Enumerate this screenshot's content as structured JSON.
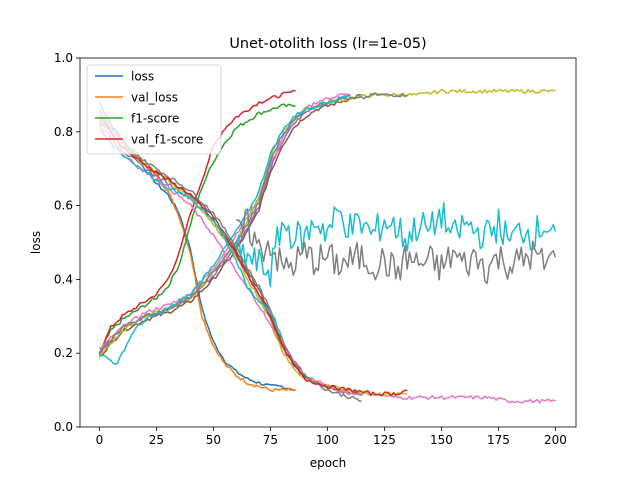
{
  "chart_data": {
    "type": "line",
    "title": "Unet-otolith loss (lr=1e-05)",
    "xlabel": "epoch",
    "ylabel": "loss",
    "xlim": [
      -8.5,
      209
    ],
    "ylim": [
      0.0,
      1.0
    ],
    "xticks": [
      0,
      25,
      50,
      75,
      100,
      125,
      150,
      175,
      200
    ],
    "yticks": [
      0.0,
      0.2,
      0.4,
      0.6,
      0.8,
      1.0
    ],
    "xtick_labels": [
      "0",
      "25",
      "50",
      "75",
      "100",
      "125",
      "150",
      "175",
      "200"
    ],
    "ytick_labels": [
      "0.0",
      "0.2",
      "0.4",
      "0.6",
      "0.8",
      "1.0"
    ],
    "grid": false,
    "legend_position": "top-left",
    "legend": [
      "loss",
      "val_loss",
      "f1-score",
      "val_f1-score"
    ],
    "series": [
      {
        "name": "loss",
        "color": "#1f77b4",
        "kind": "decreasing",
        "x": [
          0,
          5,
          10,
          15,
          20,
          25,
          30,
          35,
          40,
          45,
          50,
          55,
          60,
          65,
          70,
          75,
          80,
          86
        ],
        "y": [
          0.88,
          0.82,
          0.78,
          0.74,
          0.7,
          0.66,
          0.63,
          0.58,
          0.48,
          0.32,
          0.23,
          0.18,
          0.15,
          0.13,
          0.12,
          0.11,
          0.11,
          0.1
        ]
      },
      {
        "name": "val_loss",
        "color": "#ff7f0e",
        "kind": "decreasing",
        "x": [
          0,
          5,
          10,
          15,
          20,
          25,
          30,
          35,
          40,
          45,
          50,
          55,
          60,
          65,
          70,
          75,
          80,
          86
        ],
        "y": [
          0.86,
          0.8,
          0.77,
          0.75,
          0.72,
          0.68,
          0.64,
          0.57,
          0.47,
          0.3,
          0.22,
          0.17,
          0.14,
          0.12,
          0.11,
          0.1,
          0.1,
          0.1
        ]
      },
      {
        "name": "f1-score",
        "color": "#2ca02c",
        "kind": "increasing",
        "x": [
          0,
          5,
          10,
          15,
          20,
          25,
          30,
          35,
          40,
          45,
          50,
          55,
          60,
          65,
          70,
          75,
          80,
          86
        ],
        "y": [
          0.2,
          0.26,
          0.29,
          0.31,
          0.33,
          0.35,
          0.38,
          0.44,
          0.55,
          0.65,
          0.72,
          0.77,
          0.81,
          0.83,
          0.85,
          0.86,
          0.87,
          0.87
        ]
      },
      {
        "name": "val_f1-score",
        "color": "#d62728",
        "kind": "increasing",
        "x": [
          0,
          5,
          10,
          15,
          20,
          25,
          30,
          35,
          40,
          45,
          50,
          55,
          60,
          65,
          70,
          75,
          80,
          86
        ],
        "y": [
          0.2,
          0.27,
          0.3,
          0.32,
          0.34,
          0.36,
          0.4,
          0.47,
          0.58,
          0.67,
          0.76,
          0.81,
          0.84,
          0.86,
          0.88,
          0.89,
          0.9,
          0.91
        ]
      },
      {
        "name": "",
        "color": "#9467bd",
        "kind": "increasing",
        "x": [
          0,
          10,
          20,
          30,
          40,
          50,
          60,
          65,
          70,
          75,
          80,
          85,
          90,
          95,
          100,
          105,
          110
        ],
        "y": [
          0.2,
          0.27,
          0.3,
          0.32,
          0.35,
          0.41,
          0.49,
          0.54,
          0.6,
          0.7,
          0.77,
          0.82,
          0.85,
          0.87,
          0.88,
          0.89,
          0.9
        ]
      },
      {
        "name": "",
        "color": "#8c564b",
        "kind": "increasing",
        "x": [
          0,
          10,
          20,
          30,
          40,
          50,
          60,
          65,
          70,
          75,
          80,
          85,
          90,
          95,
          100,
          105,
          110,
          115
        ],
        "y": [
          0.19,
          0.26,
          0.29,
          0.31,
          0.34,
          0.4,
          0.48,
          0.53,
          0.59,
          0.69,
          0.76,
          0.81,
          0.84,
          0.86,
          0.87,
          0.88,
          0.89,
          0.9
        ]
      },
      {
        "name": "",
        "color": "#e377c2",
        "kind": "increasing",
        "x": [
          0,
          10,
          20,
          30,
          40,
          50,
          60,
          65,
          70,
          75,
          80,
          85,
          90,
          95,
          100,
          105,
          110
        ],
        "y": [
          0.21,
          0.27,
          0.31,
          0.33,
          0.36,
          0.43,
          0.52,
          0.57,
          0.62,
          0.71,
          0.78,
          0.83,
          0.86,
          0.88,
          0.89,
          0.9,
          0.9
        ]
      },
      {
        "name": "",
        "color": "#bcbd22",
        "kind": "increasing",
        "x": [
          0,
          10,
          20,
          30,
          40,
          50,
          60,
          65,
          70,
          75,
          80,
          90,
          100,
          110,
          120,
          130,
          140,
          150,
          160,
          170,
          180,
          190,
          200
        ],
        "y": [
          0.19,
          0.26,
          0.3,
          0.32,
          0.35,
          0.42,
          0.5,
          0.56,
          0.62,
          0.73,
          0.8,
          0.86,
          0.88,
          0.89,
          0.9,
          0.9,
          0.9,
          0.91,
          0.91,
          0.91,
          0.91,
          0.91,
          0.91
        ]
      },
      {
        "name": "",
        "color": "#7f7f7f",
        "kind": "increasing",
        "x": [
          0,
          10,
          20,
          30,
          40,
          50,
          60,
          65,
          70,
          75,
          80,
          85,
          90,
          95,
          100,
          105,
          110,
          115,
          120,
          125,
          130,
          135
        ],
        "y": [
          0.2,
          0.27,
          0.3,
          0.32,
          0.35,
          0.42,
          0.5,
          0.55,
          0.61,
          0.72,
          0.79,
          0.83,
          0.86,
          0.87,
          0.88,
          0.89,
          0.89,
          0.89,
          0.9,
          0.9,
          0.9,
          0.9
        ]
      },
      {
        "name": "",
        "color": "#17becf",
        "kind": "increasing",
        "x": [
          0,
          5,
          8,
          10,
          15,
          20,
          30,
          40,
          50,
          60,
          65,
          70,
          75,
          80,
          85,
          90,
          95,
          100,
          105,
          110
        ],
        "y": [
          0.2,
          0.18,
          0.17,
          0.2,
          0.26,
          0.29,
          0.32,
          0.36,
          0.44,
          0.53,
          0.58,
          0.64,
          0.74,
          0.8,
          0.84,
          0.86,
          0.87,
          0.88,
          0.89,
          0.9
        ]
      },
      {
        "name": "",
        "color": "#9467bd",
        "kind": "decreasing",
        "x": [
          0,
          10,
          20,
          30,
          40,
          50,
          60,
          65,
          70,
          75,
          80,
          85,
          90,
          95,
          100,
          105,
          110,
          115
        ],
        "y": [
          0.82,
          0.75,
          0.7,
          0.66,
          0.62,
          0.56,
          0.47,
          0.41,
          0.36,
          0.3,
          0.22,
          0.17,
          0.14,
          0.12,
          0.11,
          0.1,
          0.1,
          0.09
        ]
      },
      {
        "name": "",
        "color": "#8c564b",
        "kind": "decreasing",
        "x": [
          0,
          10,
          20,
          30,
          40,
          50,
          60,
          65,
          70,
          75,
          80,
          85,
          90,
          95,
          100,
          105,
          110,
          115
        ],
        "y": [
          0.83,
          0.76,
          0.71,
          0.67,
          0.63,
          0.57,
          0.48,
          0.42,
          0.37,
          0.31,
          0.23,
          0.18,
          0.14,
          0.12,
          0.11,
          0.1,
          0.09,
          0.09
        ]
      },
      {
        "name": "",
        "color": "#e377c2",
        "kind": "decreasing",
        "x": [
          0,
          10,
          20,
          30,
          40,
          50,
          60,
          70,
          80,
          90,
          100,
          110,
          120,
          130,
          140,
          150,
          160,
          170,
          180,
          190,
          200
        ],
        "y": [
          0.81,
          0.74,
          0.69,
          0.65,
          0.6,
          0.52,
          0.42,
          0.33,
          0.22,
          0.14,
          0.11,
          0.09,
          0.09,
          0.08,
          0.08,
          0.08,
          0.08,
          0.08,
          0.07,
          0.07,
          0.07
        ]
      },
      {
        "name": "",
        "color": "#bcbd22",
        "kind": "decreasing",
        "x": [
          0,
          10,
          20,
          30,
          40,
          50,
          60,
          65,
          70,
          75,
          80,
          85,
          90,
          95,
          100,
          110,
          120,
          130,
          135
        ],
        "y": [
          0.84,
          0.76,
          0.71,
          0.67,
          0.62,
          0.55,
          0.46,
          0.4,
          0.35,
          0.29,
          0.21,
          0.16,
          0.13,
          0.12,
          0.11,
          0.1,
          0.09,
          0.09,
          0.09
        ]
      },
      {
        "name": "",
        "color": "#7f7f7f",
        "kind": "decreasing",
        "x": [
          0,
          10,
          20,
          30,
          40,
          50,
          60,
          65,
          70,
          75,
          80,
          85,
          90,
          95,
          100,
          105,
          110,
          115
        ],
        "y": [
          0.85,
          0.77,
          0.72,
          0.68,
          0.64,
          0.58,
          0.49,
          0.43,
          0.38,
          0.32,
          0.24,
          0.18,
          0.14,
          0.12,
          0.1,
          0.09,
          0.08,
          0.07
        ]
      },
      {
        "name": "",
        "color": "#d62728",
        "kind": "decreasing",
        "x": [
          0,
          10,
          20,
          30,
          40,
          50,
          60,
          65,
          70,
          75,
          80,
          85,
          90,
          95,
          100,
          110,
          120,
          130,
          135
        ],
        "y": [
          0.84,
          0.76,
          0.71,
          0.67,
          0.63,
          0.56,
          0.47,
          0.41,
          0.36,
          0.3,
          0.22,
          0.17,
          0.13,
          0.12,
          0.11,
          0.1,
          0.09,
          0.09,
          0.1
        ]
      },
      {
        "name": "",
        "color": "#17becf",
        "kind": "decreasing",
        "x": [
          0,
          10,
          20,
          30,
          40,
          50,
          55,
          60,
          65,
          70,
          75,
          78,
          80
        ],
        "y": [
          0.8,
          0.74,
          0.69,
          0.65,
          0.62,
          0.56,
          0.51,
          0.45,
          0.38,
          0.34,
          0.31,
          0.27,
          0.24
        ]
      },
      {
        "name": "",
        "color": "#17becf",
        "kind": "noisy",
        "x": [
          60,
          65,
          70,
          75,
          80,
          85,
          90,
          95,
          100,
          105,
          110,
          115,
          120,
          125,
          130,
          135,
          140,
          145,
          150,
          155,
          160,
          165,
          170,
          175,
          180,
          185,
          190,
          195,
          200
        ],
        "y": [
          0.48,
          0.46,
          0.44,
          0.42,
          0.55,
          0.52,
          0.51,
          0.56,
          0.53,
          0.58,
          0.54,
          0.55,
          0.52,
          0.56,
          0.54,
          0.51,
          0.55,
          0.53,
          0.58,
          0.51,
          0.55,
          0.53,
          0.52,
          0.55,
          0.5,
          0.54,
          0.52,
          0.55,
          0.53
        ]
      },
      {
        "name": "",
        "color": "#7f7f7f",
        "kind": "noisy",
        "x": [
          60,
          65,
          70,
          75,
          80,
          85,
          90,
          95,
          100,
          105,
          110,
          115,
          120,
          125,
          130,
          135,
          140,
          145,
          150,
          155,
          160,
          165,
          170,
          175,
          180,
          185,
          190,
          195,
          200
        ],
        "y": [
          0.52,
          0.55,
          0.48,
          0.5,
          0.43,
          0.44,
          0.47,
          0.45,
          0.46,
          0.44,
          0.45,
          0.46,
          0.44,
          0.45,
          0.42,
          0.46,
          0.44,
          0.45,
          0.43,
          0.47,
          0.44,
          0.46,
          0.43,
          0.46,
          0.44,
          0.45,
          0.47,
          0.44,
          0.46
        ]
      }
    ]
  }
}
